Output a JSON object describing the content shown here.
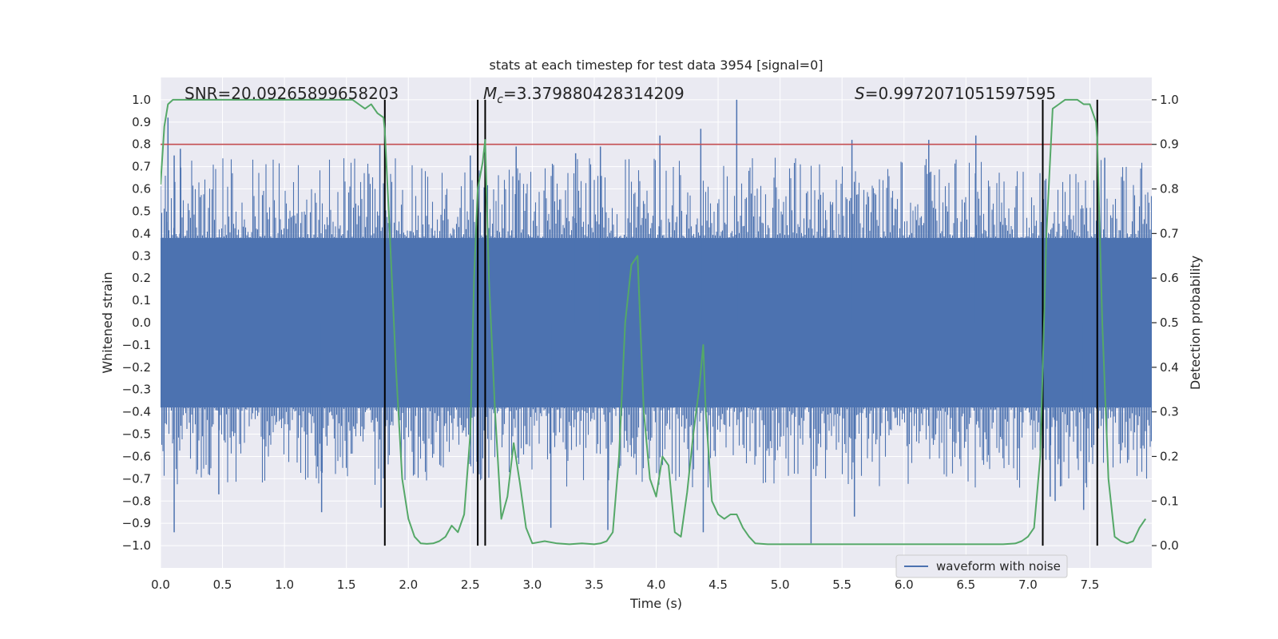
{
  "chart_data": {
    "type": "line",
    "title": "stats at each timestep for test data 3954 [signal=0]",
    "xlabel": "Time (s)",
    "ylabel_left": "Whitened strain",
    "ylabel_right": "Detection probability",
    "xlim": [
      0,
      8
    ],
    "ylim_left": [
      -1.1,
      1.1
    ],
    "ylim_right": [
      -0.05,
      1.05
    ],
    "x_ticks": [
      "0.0",
      "0.5",
      "1.0",
      "1.5",
      "2.0",
      "2.5",
      "3.0",
      "3.5",
      "4.0",
      "4.5",
      "5.0",
      "5.5",
      "6.0",
      "6.5",
      "7.0",
      "7.5"
    ],
    "x_tick_values": [
      0,
      0.5,
      1,
      1.5,
      2,
      2.5,
      3,
      3.5,
      4,
      4.5,
      5,
      5.5,
      6,
      6.5,
      7,
      7.5
    ],
    "y_ticks_left": [
      "1.0",
      "0.9",
      "0.8",
      "0.7",
      "0.6",
      "0.5",
      "0.4",
      "0.3",
      "0.2",
      "0.1",
      "0.0",
      "−0.1",
      "−0.2",
      "−0.3",
      "−0.4",
      "−0.5",
      "−0.6",
      "−0.7",
      "−0.8",
      "−0.9",
      "−1.0"
    ],
    "y_tick_values_left": [
      1,
      0.9,
      0.8,
      0.7,
      0.6,
      0.5,
      0.4,
      0.3,
      0.2,
      0.1,
      0,
      -0.1,
      -0.2,
      -0.3,
      -0.4,
      -0.5,
      -0.6,
      -0.7,
      -0.8,
      -0.9,
      -1
    ],
    "y_ticks_right": [
      "1.0",
      "0.9",
      "0.8",
      "0.7",
      "0.6",
      "0.5",
      "0.4",
      "0.3",
      "0.2",
      "0.1",
      "0.0"
    ],
    "y_tick_values_right": [
      1,
      0.9,
      0.8,
      0.7,
      0.6,
      0.5,
      0.4,
      0.3,
      0.2,
      0.1,
      0
    ],
    "grid": true,
    "legend": {
      "position": "lower-right",
      "label": "waveform with noise"
    },
    "annotations": [
      {
        "text": "SNR=20.09265899658203"
      },
      {
        "text_prefix": "M",
        "text_sub": "c",
        "text_rest": "=3.379880428314209"
      },
      {
        "text_prefix": "S",
        "text_rest": "=0.9972071051597595"
      }
    ],
    "threshold": {
      "axis": "right",
      "value": 0.9,
      "color": "#c44e52"
    },
    "event_lines_x": [
      1.81,
      2.56,
      2.62,
      7.12,
      7.56
    ],
    "series": [
      {
        "name": "waveform with noise",
        "axis": "left",
        "color": "#4c72b0",
        "kind": "dense-noise",
        "core_amplitude": 0.38,
        "peaks": [
          {
            "x": 0.06,
            "y": 0.92
          },
          {
            "x": 0.11,
            "y": 0.75
          },
          {
            "x": 0.16,
            "y": 0.78
          },
          {
            "x": 0.11,
            "y": -0.94
          },
          {
            "x": 0.47,
            "y": -0.77
          },
          {
            "x": 1.3,
            "y": -0.85
          },
          {
            "x": 1.77,
            "y": 0.8
          },
          {
            "x": 1.78,
            "y": -0.83
          },
          {
            "x": 2.5,
            "y": 0.75
          },
          {
            "x": 2.87,
            "y": 0.79
          },
          {
            "x": 3.15,
            "y": -0.92
          },
          {
            "x": 3.35,
            "y": 0.76
          },
          {
            "x": 3.55,
            "y": 0.79
          },
          {
            "x": 3.61,
            "y": -0.93
          },
          {
            "x": 4.03,
            "y": 0.84
          },
          {
            "x": 4.36,
            "y": 0.87
          },
          {
            "x": 4.38,
            "y": -0.94
          },
          {
            "x": 4.65,
            "y": 1.0
          },
          {
            "x": 5.25,
            "y": -0.99
          },
          {
            "x": 5.58,
            "y": 0.82
          },
          {
            "x": 5.6,
            "y": -0.87
          },
          {
            "x": 6.2,
            "y": 0.82
          },
          {
            "x": 6.58,
            "y": 0.84
          },
          {
            "x": 7.18,
            "y": -0.78
          },
          {
            "x": 7.22,
            "y": -0.8
          },
          {
            "x": 7.62,
            "y": 0.74
          },
          {
            "x": 7.45,
            "y": -0.84
          }
        ]
      },
      {
        "name": "",
        "axis": "right",
        "color": "#55a868",
        "x": [
          0.0,
          0.03,
          0.06,
          0.1,
          0.2,
          0.4,
          0.6,
          0.8,
          1.0,
          1.2,
          1.4,
          1.55,
          1.6,
          1.65,
          1.7,
          1.75,
          1.8,
          1.81,
          1.85,
          1.9,
          1.95,
          2.0,
          2.05,
          2.1,
          2.15,
          2.2,
          2.25,
          2.3,
          2.35,
          2.4,
          2.45,
          2.5,
          2.53,
          2.56,
          2.6,
          2.62,
          2.65,
          2.7,
          2.75,
          2.8,
          2.85,
          2.9,
          2.95,
          3.0,
          3.1,
          3.2,
          3.3,
          3.4,
          3.5,
          3.55,
          3.6,
          3.65,
          3.7,
          3.75,
          3.8,
          3.85,
          3.9,
          3.95,
          4.0,
          4.05,
          4.1,
          4.15,
          4.2,
          4.25,
          4.3,
          4.35,
          4.38,
          4.4,
          4.45,
          4.5,
          4.55,
          4.6,
          4.65,
          4.7,
          4.75,
          4.8,
          4.9,
          5.0,
          5.2,
          5.5,
          5.8,
          6.0,
          6.2,
          6.5,
          6.8,
          6.9,
          6.95,
          7.0,
          7.05,
          7.1,
          7.15,
          7.2,
          7.25,
          7.3,
          7.35,
          7.4,
          7.45,
          7.5,
          7.55,
          7.56,
          7.6,
          7.65,
          7.7,
          7.75,
          7.8,
          7.85,
          7.9,
          7.95
        ],
        "y": [
          0.81,
          0.94,
          0.99,
          1.0,
          1.0,
          1.0,
          1.0,
          1.0,
          1.0,
          1.0,
          1.0,
          1.0,
          0.99,
          0.98,
          0.99,
          0.97,
          0.96,
          0.93,
          0.7,
          0.4,
          0.15,
          0.06,
          0.02,
          0.005,
          0.004,
          0.005,
          0.01,
          0.02,
          0.045,
          0.03,
          0.07,
          0.25,
          0.6,
          0.8,
          0.86,
          0.91,
          0.6,
          0.3,
          0.06,
          0.11,
          0.23,
          0.14,
          0.04,
          0.005,
          0.01,
          0.005,
          0.003,
          0.005,
          0.003,
          0.005,
          0.01,
          0.03,
          0.2,
          0.5,
          0.63,
          0.65,
          0.3,
          0.15,
          0.11,
          0.2,
          0.18,
          0.03,
          0.02,
          0.12,
          0.25,
          0.36,
          0.45,
          0.3,
          0.1,
          0.07,
          0.06,
          0.07,
          0.07,
          0.04,
          0.02,
          0.005,
          0.003,
          0.003,
          0.003,
          0.003,
          0.003,
          0.003,
          0.003,
          0.003,
          0.003,
          0.005,
          0.01,
          0.02,
          0.04,
          0.2,
          0.7,
          0.98,
          0.99,
          1.0,
          1.0,
          1.0,
          0.99,
          0.99,
          0.95,
          0.91,
          0.5,
          0.15,
          0.02,
          0.01,
          0.005,
          0.01,
          0.04,
          0.06
        ]
      }
    ]
  }
}
